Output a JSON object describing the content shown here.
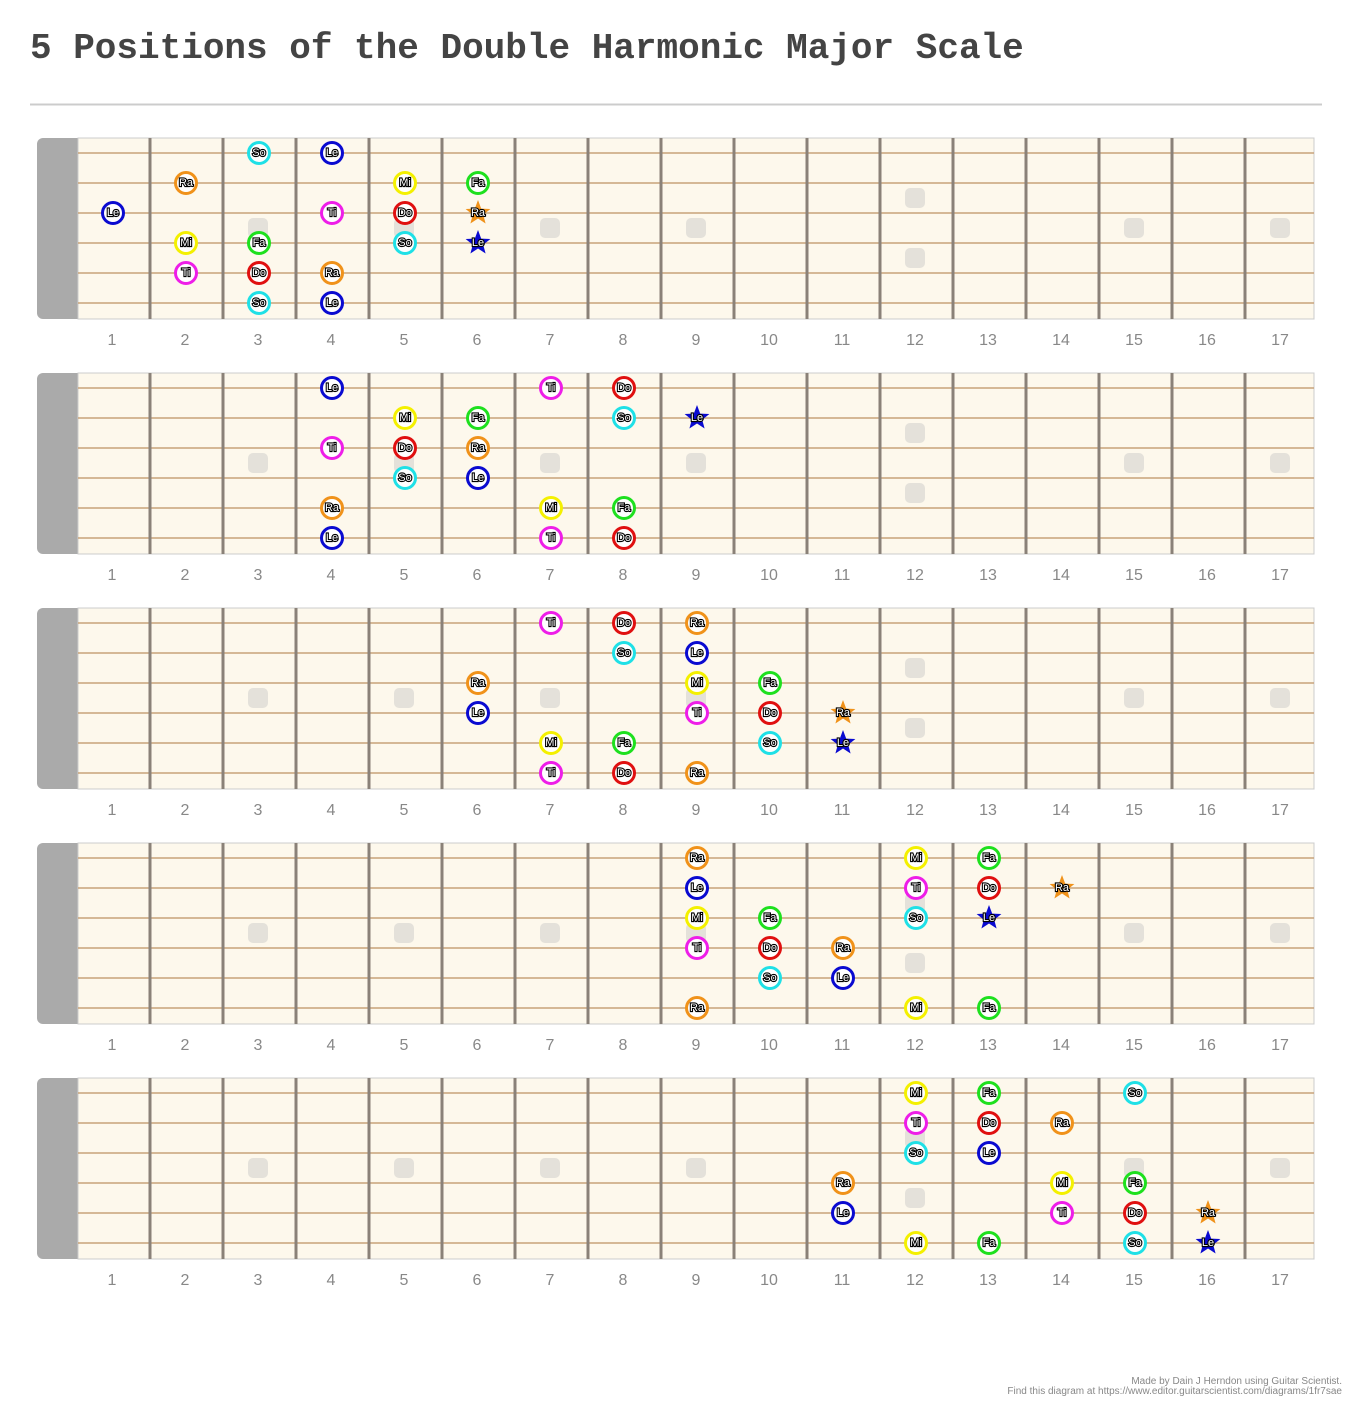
{
  "title": "5 Positions of the Double Harmonic Major Scale",
  "fret_numbers": [
    "1",
    "2",
    "3",
    "4",
    "5",
    "6",
    "7",
    "8",
    "9",
    "10",
    "11",
    "12",
    "13",
    "14",
    "15",
    "16",
    "17"
  ],
  "label_colors": {
    "So": "#1fe0e6",
    "Le": "#0a0ad0",
    "Ra": "#f0921a",
    "Mi": "#f4f000",
    "Ti": "#ee1ee8",
    "Do": "#e01010",
    "Fa": "#1ee01e"
  },
  "diagrams": [
    {
      "notes": [
        {
          "string": 1,
          "fret": 3,
          "label": "So"
        },
        {
          "string": 1,
          "fret": 4,
          "label": "Le"
        },
        {
          "string": 2,
          "fret": 2,
          "label": "Ra"
        },
        {
          "string": 2,
          "fret": 5,
          "label": "Mi"
        },
        {
          "string": 2,
          "fret": 6,
          "label": "Fa"
        },
        {
          "string": 3,
          "fret": 1,
          "label": "Le"
        },
        {
          "string": 3,
          "fret": 4,
          "label": "Ti"
        },
        {
          "string": 3,
          "fret": 5,
          "label": "Do"
        },
        {
          "string": 3,
          "fret": 6,
          "label": "Ra",
          "star": true
        },
        {
          "string": 4,
          "fret": 2,
          "label": "Mi"
        },
        {
          "string": 4,
          "fret": 3,
          "label": "Fa"
        },
        {
          "string": 4,
          "fret": 5,
          "label": "So"
        },
        {
          "string": 4,
          "fret": 6,
          "label": "Le",
          "star": true
        },
        {
          "string": 5,
          "fret": 2,
          "label": "Ti"
        },
        {
          "string": 5,
          "fret": 3,
          "label": "Do"
        },
        {
          "string": 5,
          "fret": 4,
          "label": "Ra"
        },
        {
          "string": 6,
          "fret": 3,
          "label": "So"
        },
        {
          "string": 6,
          "fret": 4,
          "label": "Le"
        }
      ]
    },
    {
      "notes": [
        {
          "string": 1,
          "fret": 4,
          "label": "Le"
        },
        {
          "string": 1,
          "fret": 7,
          "label": "Ti"
        },
        {
          "string": 1,
          "fret": 8,
          "label": "Do"
        },
        {
          "string": 2,
          "fret": 5,
          "label": "Mi"
        },
        {
          "string": 2,
          "fret": 6,
          "label": "Fa"
        },
        {
          "string": 2,
          "fret": 8,
          "label": "So"
        },
        {
          "string": 2,
          "fret": 9,
          "label": "Le",
          "star": true
        },
        {
          "string": 3,
          "fret": 4,
          "label": "Ti"
        },
        {
          "string": 3,
          "fret": 5,
          "label": "Do"
        },
        {
          "string": 3,
          "fret": 6,
          "label": "Ra"
        },
        {
          "string": 4,
          "fret": 5,
          "label": "So"
        },
        {
          "string": 4,
          "fret": 6,
          "label": "Le"
        },
        {
          "string": 5,
          "fret": 4,
          "label": "Ra"
        },
        {
          "string": 5,
          "fret": 7,
          "label": "Mi"
        },
        {
          "string": 5,
          "fret": 8,
          "label": "Fa"
        },
        {
          "string": 6,
          "fret": 4,
          "label": "Le"
        },
        {
          "string": 6,
          "fret": 7,
          "label": "Ti"
        },
        {
          "string": 6,
          "fret": 8,
          "label": "Do"
        }
      ]
    },
    {
      "notes": [
        {
          "string": 1,
          "fret": 7,
          "label": "Ti"
        },
        {
          "string": 1,
          "fret": 8,
          "label": "Do"
        },
        {
          "string": 1,
          "fret": 9,
          "label": "Ra"
        },
        {
          "string": 2,
          "fret": 8,
          "label": "So"
        },
        {
          "string": 2,
          "fret": 9,
          "label": "Le"
        },
        {
          "string": 3,
          "fret": 6,
          "label": "Ra"
        },
        {
          "string": 3,
          "fret": 9,
          "label": "Mi"
        },
        {
          "string": 3,
          "fret": 10,
          "label": "Fa"
        },
        {
          "string": 4,
          "fret": 6,
          "label": "Le"
        },
        {
          "string": 4,
          "fret": 9,
          "label": "Ti"
        },
        {
          "string": 4,
          "fret": 10,
          "label": "Do"
        },
        {
          "string": 4,
          "fret": 11,
          "label": "Ra",
          "star": true
        },
        {
          "string": 5,
          "fret": 7,
          "label": "Mi"
        },
        {
          "string": 5,
          "fret": 8,
          "label": "Fa"
        },
        {
          "string": 5,
          "fret": 10,
          "label": "So"
        },
        {
          "string": 5,
          "fret": 11,
          "label": "Le",
          "star": true
        },
        {
          "string": 6,
          "fret": 7,
          "label": "Ti"
        },
        {
          "string": 6,
          "fret": 8,
          "label": "Do"
        },
        {
          "string": 6,
          "fret": 9,
          "label": "Ra"
        }
      ]
    },
    {
      "notes": [
        {
          "string": 1,
          "fret": 9,
          "label": "Ra"
        },
        {
          "string": 1,
          "fret": 12,
          "label": "Mi"
        },
        {
          "string": 1,
          "fret": 13,
          "label": "Fa"
        },
        {
          "string": 2,
          "fret": 9,
          "label": "Le"
        },
        {
          "string": 2,
          "fret": 12,
          "label": "Ti"
        },
        {
          "string": 2,
          "fret": 13,
          "label": "Do"
        },
        {
          "string": 2,
          "fret": 14,
          "label": "Ra",
          "star": true
        },
        {
          "string": 3,
          "fret": 9,
          "label": "Mi"
        },
        {
          "string": 3,
          "fret": 10,
          "label": "Fa"
        },
        {
          "string": 3,
          "fret": 12,
          "label": "So"
        },
        {
          "string": 3,
          "fret": 13,
          "label": "Le",
          "star": true
        },
        {
          "string": 4,
          "fret": 9,
          "label": "Ti"
        },
        {
          "string": 4,
          "fret": 10,
          "label": "Do"
        },
        {
          "string": 4,
          "fret": 11,
          "label": "Ra"
        },
        {
          "string": 5,
          "fret": 10,
          "label": "So"
        },
        {
          "string": 5,
          "fret": 11,
          "label": "Le"
        },
        {
          "string": 6,
          "fret": 9,
          "label": "Ra"
        },
        {
          "string": 6,
          "fret": 12,
          "label": "Mi"
        },
        {
          "string": 6,
          "fret": 13,
          "label": "Fa"
        }
      ]
    },
    {
      "notes": [
        {
          "string": 1,
          "fret": 12,
          "label": "Mi"
        },
        {
          "string": 1,
          "fret": 13,
          "label": "Fa"
        },
        {
          "string": 1,
          "fret": 15,
          "label": "So"
        },
        {
          "string": 2,
          "fret": 12,
          "label": "Ti"
        },
        {
          "string": 2,
          "fret": 13,
          "label": "Do"
        },
        {
          "string": 2,
          "fret": 14,
          "label": "Ra"
        },
        {
          "string": 3,
          "fret": 12,
          "label": "So"
        },
        {
          "string": 3,
          "fret": 13,
          "label": "Le"
        },
        {
          "string": 4,
          "fret": 11,
          "label": "Ra"
        },
        {
          "string": 4,
          "fret": 14,
          "label": "Mi"
        },
        {
          "string": 4,
          "fret": 15,
          "label": "Fa"
        },
        {
          "string": 5,
          "fret": 11,
          "label": "Le"
        },
        {
          "string": 5,
          "fret": 14,
          "label": "Ti"
        },
        {
          "string": 5,
          "fret": 15,
          "label": "Do"
        },
        {
          "string": 5,
          "fret": 16,
          "label": "Ra",
          "star": true
        },
        {
          "string": 6,
          "fret": 12,
          "label": "Mi"
        },
        {
          "string": 6,
          "fret": 13,
          "label": "Fa"
        },
        {
          "string": 6,
          "fret": 15,
          "label": "So"
        },
        {
          "string": 6,
          "fret": 16,
          "label": "Le",
          "star": true
        }
      ]
    }
  ],
  "footer": {
    "credit": "Made by Dain J Herndon using Guitar Scientist.",
    "link": "Find this diagram at https://www.editor.guitarscientist.com/diagrams/1fr7sae"
  }
}
